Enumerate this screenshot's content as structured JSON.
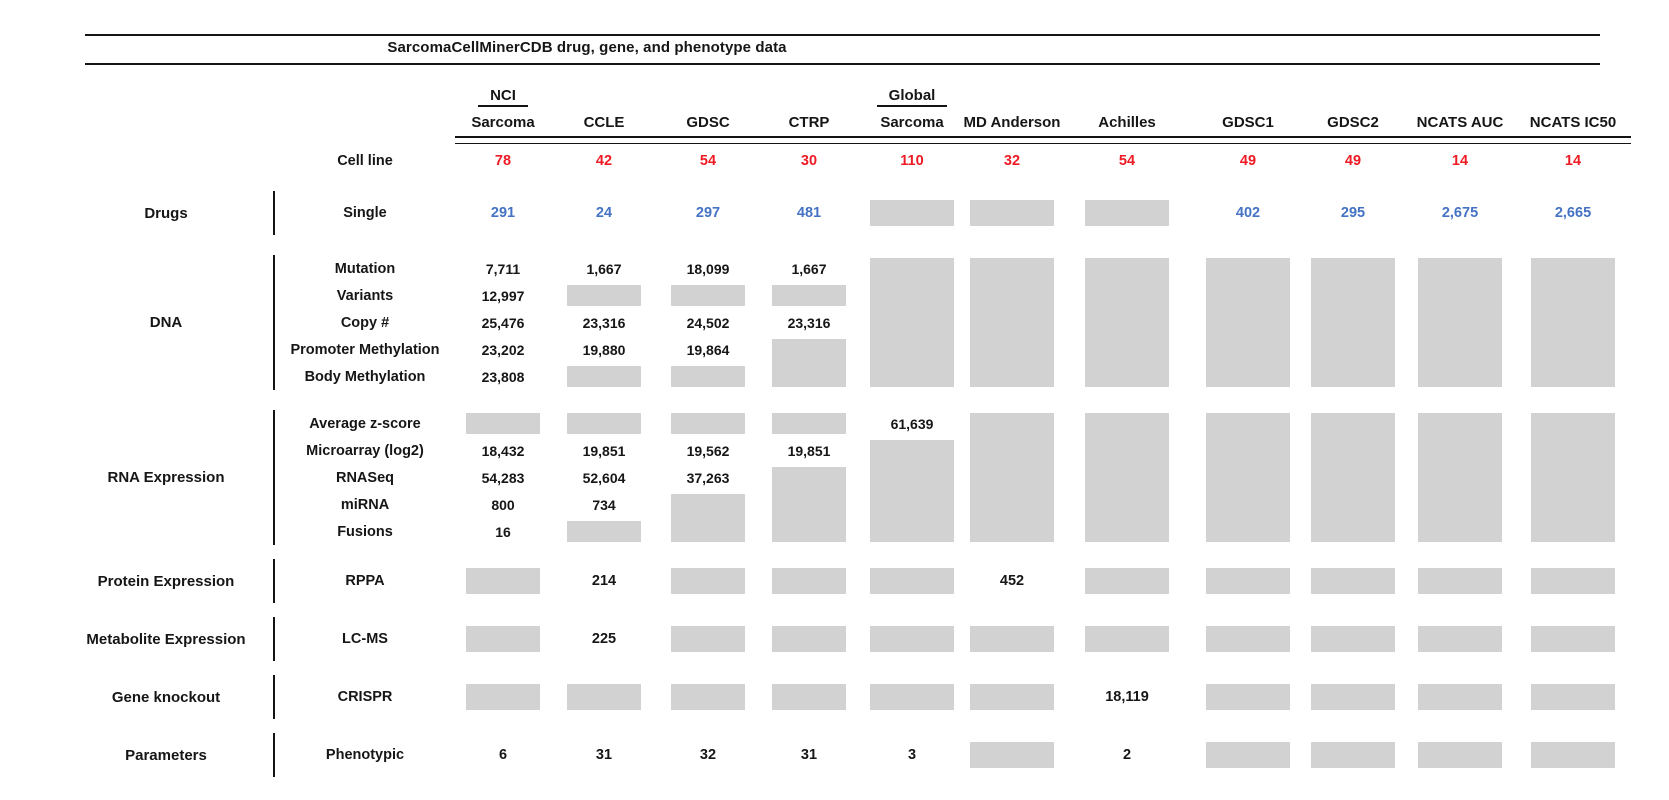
{
  "colors": {
    "red": "#EE1B24",
    "blue": "#4472C4",
    "box": "#D2D2D2",
    "line": "#141414"
  },
  "chart_data": {
    "type": "table",
    "title": "SarcomaCellMinerCDB drug, gene, and phenotype data",
    "cell_line_row_label": "Cell line",
    "na_box_meaning": "gray box = data not available",
    "columns": [
      {
        "id": "nci-sarcoma",
        "top": "NCI",
        "label": "Sarcoma",
        "cell_lines": "78"
      },
      {
        "id": "ccle",
        "top": "",
        "label": "CCLE",
        "cell_lines": "42"
      },
      {
        "id": "gdsc",
        "top": "",
        "label": "GDSC",
        "cell_lines": "54"
      },
      {
        "id": "ctrp",
        "top": "",
        "label": "CTRP",
        "cell_lines": "30"
      },
      {
        "id": "global-sarcoma",
        "top": "Global",
        "label": "Sarcoma",
        "cell_lines": "110"
      },
      {
        "id": "md-anderson",
        "top": "",
        "label": "MD Anderson",
        "cell_lines": "32"
      },
      {
        "id": "achilles",
        "top": "",
        "label": "Achilles",
        "cell_lines": "54"
      },
      {
        "id": "gdsc1",
        "top": "",
        "label": "GDSC1",
        "cell_lines": "49"
      },
      {
        "id": "gdsc2",
        "top": "",
        "label": "GDSC2",
        "cell_lines": "49"
      },
      {
        "id": "ncats-auc",
        "top": "",
        "label": "NCATS AUC",
        "cell_lines": "14"
      },
      {
        "id": "ncats-ic50",
        "top": "",
        "label": "NCATS IC50",
        "cell_lines": "14"
      }
    ],
    "sections": [
      {
        "category": "Drugs",
        "density": "single",
        "value_color": "blue",
        "subrows": [
          "Single"
        ],
        "cells": [
          [
            [
              "v",
              "291"
            ]
          ],
          [
            [
              "v",
              "24"
            ]
          ],
          [
            [
              "v",
              "297"
            ]
          ],
          [
            [
              "v",
              "481"
            ]
          ],
          [
            [
              "b",
              1
            ]
          ],
          [
            [
              "b",
              1
            ]
          ],
          [
            [
              "b",
              1
            ]
          ],
          [
            [
              "v",
              "402"
            ]
          ],
          [
            [
              "v",
              "295"
            ]
          ],
          [
            [
              "v",
              "2,675"
            ]
          ],
          [
            [
              "v",
              "2,665"
            ]
          ]
        ]
      },
      {
        "category": "DNA",
        "density": "dense",
        "value_color": "black",
        "subrows": [
          "Mutation",
          "Variants",
          "Copy #",
          "Promoter Methylation",
          "Body Methylation"
        ],
        "cells": [
          [
            [
              "v",
              "7,711"
            ],
            [
              "v",
              "12,997"
            ],
            [
              "v",
              "25,476"
            ],
            [
              "v",
              "23,202"
            ],
            [
              "v",
              "23,808"
            ]
          ],
          [
            [
              "v",
              "1,667"
            ],
            [
              "b",
              1
            ],
            [
              "v",
              "23,316"
            ],
            [
              "v",
              "19,880"
            ],
            [
              "b",
              1
            ]
          ],
          [
            [
              "v",
              "18,099"
            ],
            [
              "b",
              1
            ],
            [
              "v",
              "24,502"
            ],
            [
              "v",
              "19,864"
            ],
            [
              "b",
              1
            ]
          ],
          [
            [
              "v",
              "1,667"
            ],
            [
              "b",
              1
            ],
            [
              "v",
              "23,316"
            ],
            [
              "b",
              2
            ]
          ],
          [
            [
              "b",
              5
            ]
          ],
          [
            [
              "b",
              5
            ]
          ],
          [
            [
              "b",
              5
            ]
          ],
          [
            [
              "b",
              5
            ]
          ],
          [
            [
              "b",
              5
            ]
          ],
          [
            [
              "b",
              5
            ]
          ],
          [
            [
              "b",
              5
            ]
          ]
        ]
      },
      {
        "category": "RNA Expression",
        "density": "dense",
        "value_color": "black",
        "subrows": [
          "Average z-score",
          "Microarray (log2)",
          "RNASeq",
          "miRNA",
          "Fusions"
        ],
        "cells": [
          [
            [
              "b",
              1
            ],
            [
              "v",
              "18,432"
            ],
            [
              "v",
              "54,283"
            ],
            [
              "v",
              "800"
            ],
            [
              "v",
              "16"
            ]
          ],
          [
            [
              "b",
              1
            ],
            [
              "v",
              "19,851"
            ],
            [
              "v",
              "52,604"
            ],
            [
              "v",
              "734"
            ],
            [
              "b",
              1
            ]
          ],
          [
            [
              "b",
              1
            ],
            [
              "v",
              "19,562"
            ],
            [
              "v",
              "37,263"
            ],
            [
              "b",
              2
            ]
          ],
          [
            [
              "b",
              1
            ],
            [
              "v",
              "19,851"
            ],
            [
              "b",
              3
            ]
          ],
          [
            [
              "v",
              "61,639"
            ],
            [
              "b",
              4
            ]
          ],
          [
            [
              "b",
              5
            ]
          ],
          [
            [
              "b",
              5
            ]
          ],
          [
            [
              "b",
              5
            ]
          ],
          [
            [
              "b",
              5
            ]
          ],
          [
            [
              "b",
              5
            ]
          ],
          [
            [
              "b",
              5
            ]
          ]
        ]
      },
      {
        "category": "Protein Expression",
        "density": "single",
        "value_color": "black",
        "subrows": [
          "RPPA"
        ],
        "cells": [
          [
            [
              "b",
              1
            ]
          ],
          [
            [
              "v",
              "214"
            ]
          ],
          [
            [
              "b",
              1
            ]
          ],
          [
            [
              "b",
              1
            ]
          ],
          [
            [
              "b",
              1
            ]
          ],
          [
            [
              "v",
              "452"
            ]
          ],
          [
            [
              "b",
              1
            ]
          ],
          [
            [
              "b",
              1
            ]
          ],
          [
            [
              "b",
              1
            ]
          ],
          [
            [
              "b",
              1
            ]
          ],
          [
            [
              "b",
              1
            ]
          ]
        ]
      },
      {
        "category": "Metabolite Expression",
        "density": "single",
        "value_color": "black",
        "subrows": [
          "LC-MS"
        ],
        "cells": [
          [
            [
              "b",
              1
            ]
          ],
          [
            [
              "v",
              "225"
            ]
          ],
          [
            [
              "b",
              1
            ]
          ],
          [
            [
              "b",
              1
            ]
          ],
          [
            [
              "b",
              1
            ]
          ],
          [
            [
              "b",
              1
            ]
          ],
          [
            [
              "b",
              1
            ]
          ],
          [
            [
              "b",
              1
            ]
          ],
          [
            [
              "b",
              1
            ]
          ],
          [
            [
              "b",
              1
            ]
          ],
          [
            [
              "b",
              1
            ]
          ]
        ]
      },
      {
        "category": "Gene knockout",
        "density": "single",
        "value_color": "black",
        "subrows": [
          "CRISPR"
        ],
        "cells": [
          [
            [
              "b",
              1
            ]
          ],
          [
            [
              "b",
              1
            ]
          ],
          [
            [
              "b",
              1
            ]
          ],
          [
            [
              "b",
              1
            ]
          ],
          [
            [
              "b",
              1
            ]
          ],
          [
            [
              "b",
              1
            ]
          ],
          [
            [
              "v",
              "18,119"
            ]
          ],
          [
            [
              "b",
              1
            ]
          ],
          [
            [
              "b",
              1
            ]
          ],
          [
            [
              "b",
              1
            ]
          ],
          [
            [
              "b",
              1
            ]
          ]
        ]
      },
      {
        "category": "Parameters",
        "density": "single",
        "value_color": "black",
        "subrows": [
          "Phenotypic"
        ],
        "cells": [
          [
            [
              "v",
              "6"
            ]
          ],
          [
            [
              "v",
              "31"
            ]
          ],
          [
            [
              "v",
              "32"
            ]
          ],
          [
            [
              "v",
              "31"
            ]
          ],
          [
            [
              "v",
              "3"
            ]
          ],
          [
            [
              "b",
              1
            ]
          ],
          [
            [
              "v",
              "2"
            ]
          ],
          [
            [
              "b",
              1
            ]
          ],
          [
            [
              "b",
              1
            ]
          ],
          [
            [
              "b",
              1
            ]
          ],
          [
            [
              "b",
              1
            ]
          ]
        ]
      }
    ]
  }
}
